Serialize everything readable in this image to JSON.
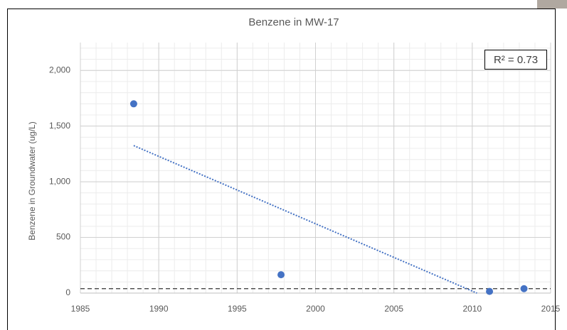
{
  "chart_data": {
    "type": "scatter",
    "title": "Benzene in MW-17",
    "y_label": "Benzene in Groundwater (ug/L)",
    "x": [
      1988.4,
      1997.8,
      2011.1,
      2013.3
    ],
    "values": [
      1700,
      165,
      15,
      40
    ],
    "color": "#4472c4",
    "xlim": [
      1985,
      2015
    ],
    "xticks": [
      1985,
      1990,
      1995,
      2000,
      2005,
      2010,
      2015
    ],
    "ylim": [
      0,
      2250
    ],
    "yticks": [
      0,
      {
        "value": 500,
        "label": "500"
      },
      {
        "value": 1000,
        "label": "1,000"
      },
      {
        "value": 1500,
        "label": "1,500"
      },
      {
        "value": 2000,
        "label": "2,000"
      }
    ],
    "grid": true,
    "minor_x_step": 1,
    "minor_y_step": 100,
    "trendline": {
      "x": [
        1988.4,
        2010.3
      ],
      "values": [
        1325,
        0
      ],
      "color": "#4472c4",
      "r2_label": "R² = 0.73"
    },
    "reference_line": {
      "value": 40,
      "color": "#333333"
    }
  }
}
